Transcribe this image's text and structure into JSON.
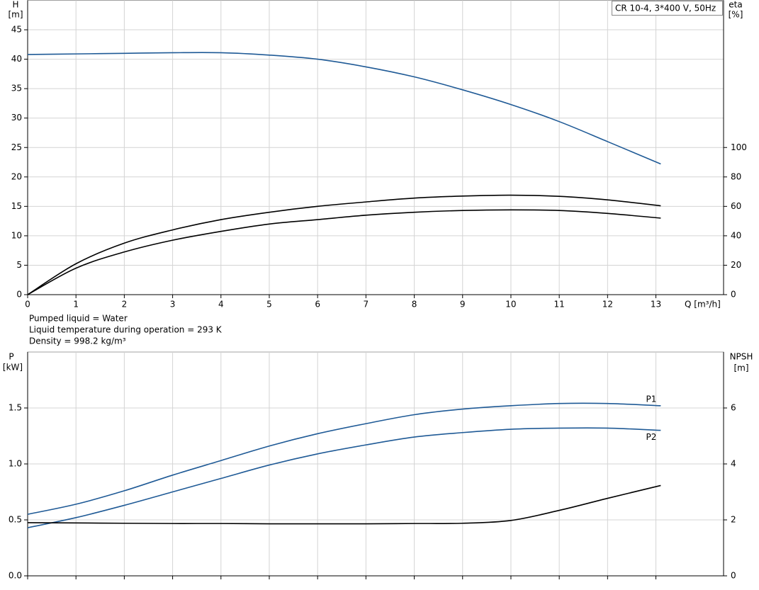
{
  "notes": [
    "Pumped liquid = Water",
    "Liquid temperature during operation = 293 K",
    "Density = 998.2 kg/m³"
  ],
  "chart_data": [
    {
      "type": "line",
      "title": "CR 10-4, 3*400 V, 50Hz",
      "ylabel": "H",
      "yunit": "[m]",
      "y2label": "eta",
      "y2unit": "[%]",
      "xlabel": "Q [m³/h]",
      "show_xtick_labels": true,
      "grid": true,
      "xlim": [
        0,
        14.4
      ],
      "xticks": [
        0,
        1,
        2,
        3,
        4,
        5,
        6,
        7,
        8,
        9,
        10,
        11,
        12,
        13
      ],
      "ylim": [
        0,
        50
      ],
      "yticks": [
        0,
        5,
        10,
        15,
        20,
        25,
        30,
        35,
        40,
        45
      ],
      "y2lim": [
        0,
        200
      ],
      "y2ticks": [
        0,
        20,
        40,
        60,
        80,
        100
      ],
      "x": [
        0,
        1,
        2,
        3,
        4,
        5,
        6,
        7,
        8,
        9,
        10,
        11,
        12,
        13.1
      ],
      "series": [
        {
          "color": "#1f5a96",
          "values": [
            40.8,
            40.9,
            41.0,
            41.1,
            41.1,
            40.7,
            40.0,
            38.7,
            37.0,
            34.8,
            32.3,
            29.4,
            26.0,
            22.2
          ]
        },
        {
          "color": "#000000",
          "axis": "y2",
          "values": [
            0,
            21,
            35,
            44,
            51,
            56,
            60,
            63,
            65.6,
            67,
            67.6,
            66.8,
            64.4,
            60.4
          ]
        },
        {
          "color": "#000000",
          "axis": "y2",
          "values": [
            0,
            18,
            29,
            37,
            43,
            48,
            51,
            54,
            56,
            57.2,
            57.6,
            57.2,
            55.2,
            52
          ]
        }
      ]
    },
    {
      "type": "line",
      "ylabel": "P",
      "yunit": "[kW]",
      "y2label": "NPSH",
      "y2unit": "[m]",
      "show_xtick_labels": false,
      "grid": true,
      "xlim": [
        0,
        14.4
      ],
      "xticks": [
        0,
        1,
        2,
        3,
        4,
        5,
        6,
        7,
        8,
        9,
        10,
        11,
        12,
        13
      ],
      "ylim": [
        0,
        2.0
      ],
      "yticks": [
        {
          "value": 0,
          "label": "0.0"
        },
        0.5,
        {
          "value": 1,
          "label": "1.0"
        },
        1.5
      ],
      "y2lim": [
        0,
        8
      ],
      "y2ticks": [
        0,
        2,
        4,
        6
      ],
      "x": [
        0,
        1,
        2,
        3,
        4,
        5,
        6,
        7,
        8,
        9,
        10,
        11,
        12,
        13.1
      ],
      "series": [
        {
          "name": "P1",
          "color": "#1f5a96",
          "values": [
            0.55,
            0.64,
            0.76,
            0.9,
            1.03,
            1.16,
            1.27,
            1.36,
            1.44,
            1.49,
            1.52,
            1.54,
            1.54,
            1.52
          ]
        },
        {
          "name": "P2",
          "color": "#1f5a96",
          "values": [
            0.43,
            0.52,
            0.63,
            0.75,
            0.87,
            0.99,
            1.09,
            1.17,
            1.24,
            1.28,
            1.31,
            1.32,
            1.32,
            1.3
          ]
        },
        {
          "color": "#000000",
          "axis": "y2",
          "values": [
            1.9,
            1.89,
            1.88,
            1.87,
            1.87,
            1.86,
            1.86,
            1.86,
            1.87,
            1.88,
            1.98,
            2.34,
            2.77,
            3.23
          ]
        }
      ]
    }
  ]
}
